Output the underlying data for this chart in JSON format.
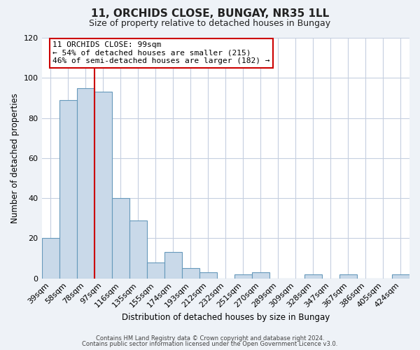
{
  "title": "11, ORCHIDS CLOSE, BUNGAY, NR35 1LL",
  "subtitle": "Size of property relative to detached houses in Bungay",
  "xlabel": "Distribution of detached houses by size in Bungay",
  "ylabel": "Number of detached properties",
  "bar_labels": [
    "39sqm",
    "58sqm",
    "78sqm",
    "97sqm",
    "116sqm",
    "135sqm",
    "155sqm",
    "174sqm",
    "193sqm",
    "212sqm",
    "232sqm",
    "251sqm",
    "270sqm",
    "289sqm",
    "309sqm",
    "328sqm",
    "347sqm",
    "367sqm",
    "386sqm",
    "405sqm",
    "424sqm"
  ],
  "bar_values": [
    20,
    89,
    95,
    93,
    40,
    29,
    8,
    13,
    5,
    3,
    0,
    2,
    3,
    0,
    0,
    2,
    0,
    2,
    0,
    0,
    2
  ],
  "bar_color": "#c9d9e9",
  "bar_edgecolor": "#6699bb",
  "vline_color": "#cc0000",
  "ylim": [
    0,
    120
  ],
  "yticks": [
    0,
    20,
    40,
    60,
    80,
    100,
    120
  ],
  "annotation_title": "11 ORCHIDS CLOSE: 99sqm",
  "annotation_line1": "← 54% of detached houses are smaller (215)",
  "annotation_line2": "46% of semi-detached houses are larger (182) →",
  "annotation_box_color": "#ffffff",
  "annotation_box_edgecolor": "#cc0000",
  "footer_line1": "Contains HM Land Registry data © Crown copyright and database right 2024.",
  "footer_line2": "Contains public sector information licensed under the Open Government Licence v3.0.",
  "background_color": "#eef2f7",
  "plot_background_color": "#ffffff",
  "grid_color": "#c5cfe0",
  "title_fontsize": 11,
  "subtitle_fontsize": 9
}
